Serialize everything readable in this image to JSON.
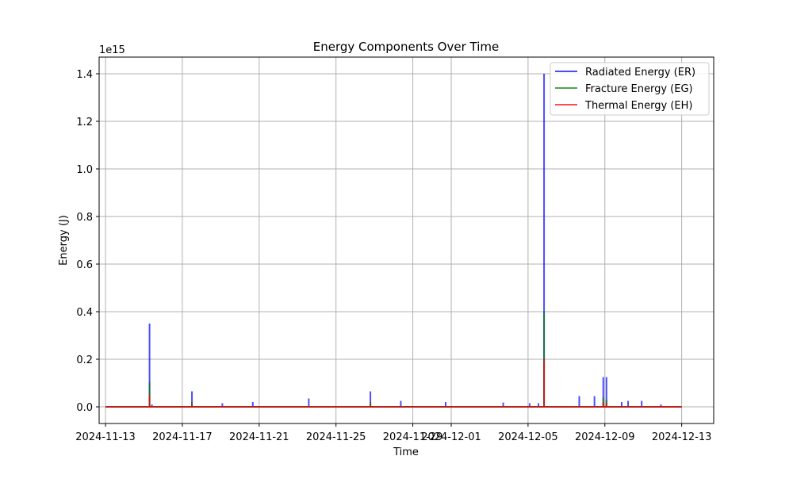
{
  "chart_data": {
    "type": "line",
    "title": "Energy Components Over Time",
    "xlabel": "Time",
    "ylabel": "Energy (J)",
    "y_offset_label": "1e15",
    "y_scale_factor": 1000000000000000.0,
    "xlim": [
      "2024-11-12T16:00",
      "2024-12-14T16:00"
    ],
    "ylim": [
      -0.07,
      1.47
    ],
    "x_ticks": [
      "2024-11-13",
      "2024-11-17",
      "2024-11-21",
      "2024-11-25",
      "2024-11-29",
      "2024-12-01",
      "2024-12-05",
      "2024-12-09",
      "2024-12-13"
    ],
    "y_ticks": [
      "0.0",
      "0.2",
      "0.4",
      "0.6",
      "0.8",
      "1.0",
      "1.2",
      "1.4"
    ],
    "grid": true,
    "legend_position": "top-right",
    "series": [
      {
        "name": "Radiated Energy (ER)",
        "color": "#0000ff",
        "points": [
          [
            "2024-11-15T07:00",
            0.35
          ],
          [
            "2024-11-15T10:00",
            0.01
          ],
          [
            "2024-11-17T12:00",
            0.065
          ],
          [
            "2024-11-19T02:00",
            0.015
          ],
          [
            "2024-11-20T16:00",
            0.02
          ],
          [
            "2024-11-23T14:00",
            0.035
          ],
          [
            "2024-11-26T19:00",
            0.065
          ],
          [
            "2024-11-28T09:00",
            0.025
          ],
          [
            "2024-11-30T17:00",
            0.02
          ],
          [
            "2024-12-03T17:00",
            0.018
          ],
          [
            "2024-12-05T02:00",
            0.015
          ],
          [
            "2024-12-05T13:00",
            0.015
          ],
          [
            "2024-12-05T20:00",
            1.4
          ],
          [
            "2024-12-07T16:00",
            0.045
          ],
          [
            "2024-12-08T11:00",
            0.045
          ],
          [
            "2024-12-08T22:00",
            0.125
          ],
          [
            "2024-12-09T02:00",
            0.125
          ],
          [
            "2024-12-09T21:00",
            0.02
          ],
          [
            "2024-12-10T05:00",
            0.025
          ],
          [
            "2024-12-10T22:00",
            0.025
          ],
          [
            "2024-12-11T22:00",
            0.01
          ]
        ]
      },
      {
        "name": "Fracture Energy (EG)",
        "color": "#008000",
        "points": [
          [
            "2024-11-15T07:00",
            0.105
          ],
          [
            "2024-11-17T12:00",
            0.02
          ],
          [
            "2024-11-26T19:00",
            0.02
          ],
          [
            "2024-12-05T20:00",
            0.4
          ],
          [
            "2024-12-08T22:00",
            0.04
          ],
          [
            "2024-12-09T02:00",
            0.03
          ]
        ]
      },
      {
        "name": "Thermal Energy (EH)",
        "color": "#ff0000",
        "points": [
          [
            "2024-11-15T07:00",
            0.05
          ],
          [
            "2024-11-17T12:00",
            0.01
          ],
          [
            "2024-11-26T19:00",
            0.01
          ],
          [
            "2024-12-05T20:00",
            0.2
          ],
          [
            "2024-12-08T22:00",
            0.02
          ],
          [
            "2024-12-09T02:00",
            0.015
          ]
        ]
      }
    ]
  }
}
